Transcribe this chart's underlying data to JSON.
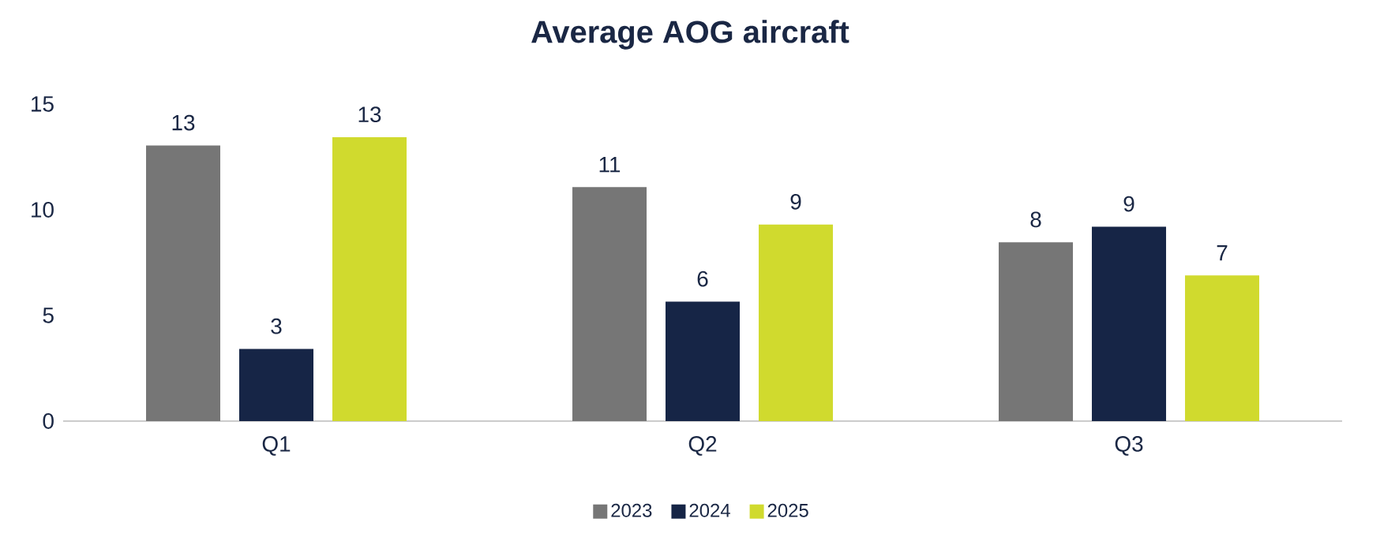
{
  "chart_data": {
    "type": "bar",
    "title": "Average AOG aircraft",
    "categories": [
      "Q1",
      "Q2",
      "Q3"
    ],
    "series": [
      {
        "name": "2023",
        "color": "#767676",
        "values": [
          13.04,
          11.07,
          8.46
        ],
        "value_labels": [
          "13",
          "11",
          "8"
        ]
      },
      {
        "name": "2024",
        "color": "#162546",
        "values": [
          3.41,
          5.65,
          9.2
        ],
        "value_labels": [
          "3",
          "6",
          "9"
        ]
      },
      {
        "name": "2025",
        "color": "#d0da2e",
        "values": [
          13.43,
          9.3,
          6.89
        ],
        "value_labels": [
          "13",
          "9",
          "7"
        ]
      }
    ],
    "ylim": [
      0,
      15
    ],
    "yticks": [
      0,
      5,
      10,
      15
    ],
    "legend": "bottom"
  }
}
